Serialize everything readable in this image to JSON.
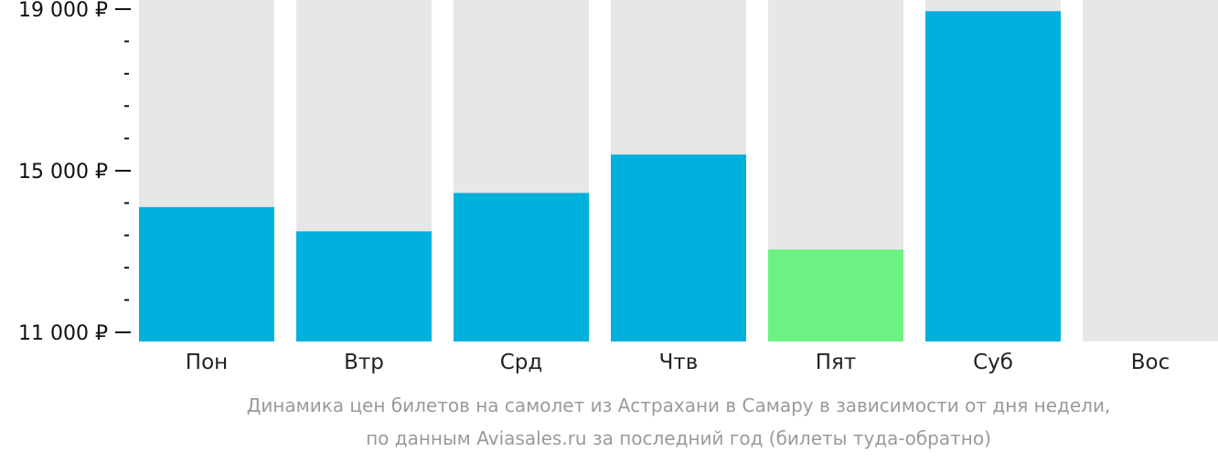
{
  "chart_data": {
    "type": "bar",
    "categories": [
      "Пон",
      "Втр",
      "Срд",
      "Чтв",
      "Пят",
      "Суб",
      "Вос"
    ],
    "values": [
      14100,
      13500,
      14450,
      15400,
      13050,
      18950,
      null
    ],
    "ylim": [
      11000,
      19000
    ],
    "y_ticks": [
      {
        "value": 19000,
        "label": "19 000 ₽"
      },
      {
        "value": 15000,
        "label": "15 000 ₽"
      },
      {
        "value": 11000,
        "label": "11 000 ₽"
      }
    ],
    "minor_tick_step": 800,
    "highlight_index": 4,
    "title": "",
    "xlabel": "",
    "ylabel": "",
    "caption": [
      "Динамика цен билетов на самолет из Астрахани в Самару в зависимости от дня недели,",
      "по данным Aviasales.ru за последний год (билеты туда-обратно)"
    ],
    "colors": {
      "bar": "#00b0dd",
      "highlight": "#6cf283",
      "background_bar": "#e7e7e7",
      "axis_text": "#111111",
      "caption_text": "#9a9a9a"
    }
  }
}
